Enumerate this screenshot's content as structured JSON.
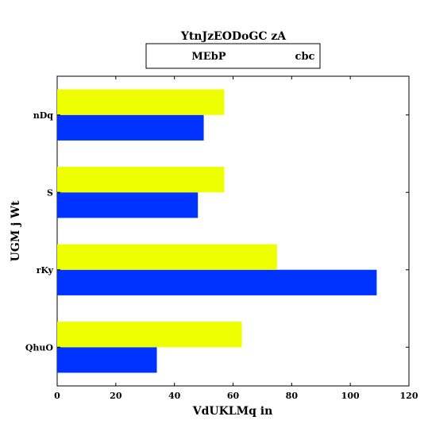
{
  "chart_data": {
    "type": "bar",
    "orientation": "horizontal",
    "title": "YtnJzEODoGC zA",
    "xlabel": "VdUKLMq in",
    "ylabel": "UGM  j Wt",
    "categories": [
      "QhuO",
      "rKy",
      "S",
      "nDq"
    ],
    "series": [
      {
        "name": "MEbP",
        "color": "#0033ff",
        "values": [
          34,
          109,
          48,
          50
        ]
      },
      {
        "name": "cbc",
        "color": "#eeff00",
        "values": [
          63,
          75,
          57,
          57
        ]
      }
    ],
    "xlim": [
      0,
      120
    ],
    "xticks": [
      0,
      20,
      40,
      60,
      80,
      100,
      120
    ],
    "grid": false,
    "legend": {
      "position": "top-center",
      "border": true
    }
  }
}
